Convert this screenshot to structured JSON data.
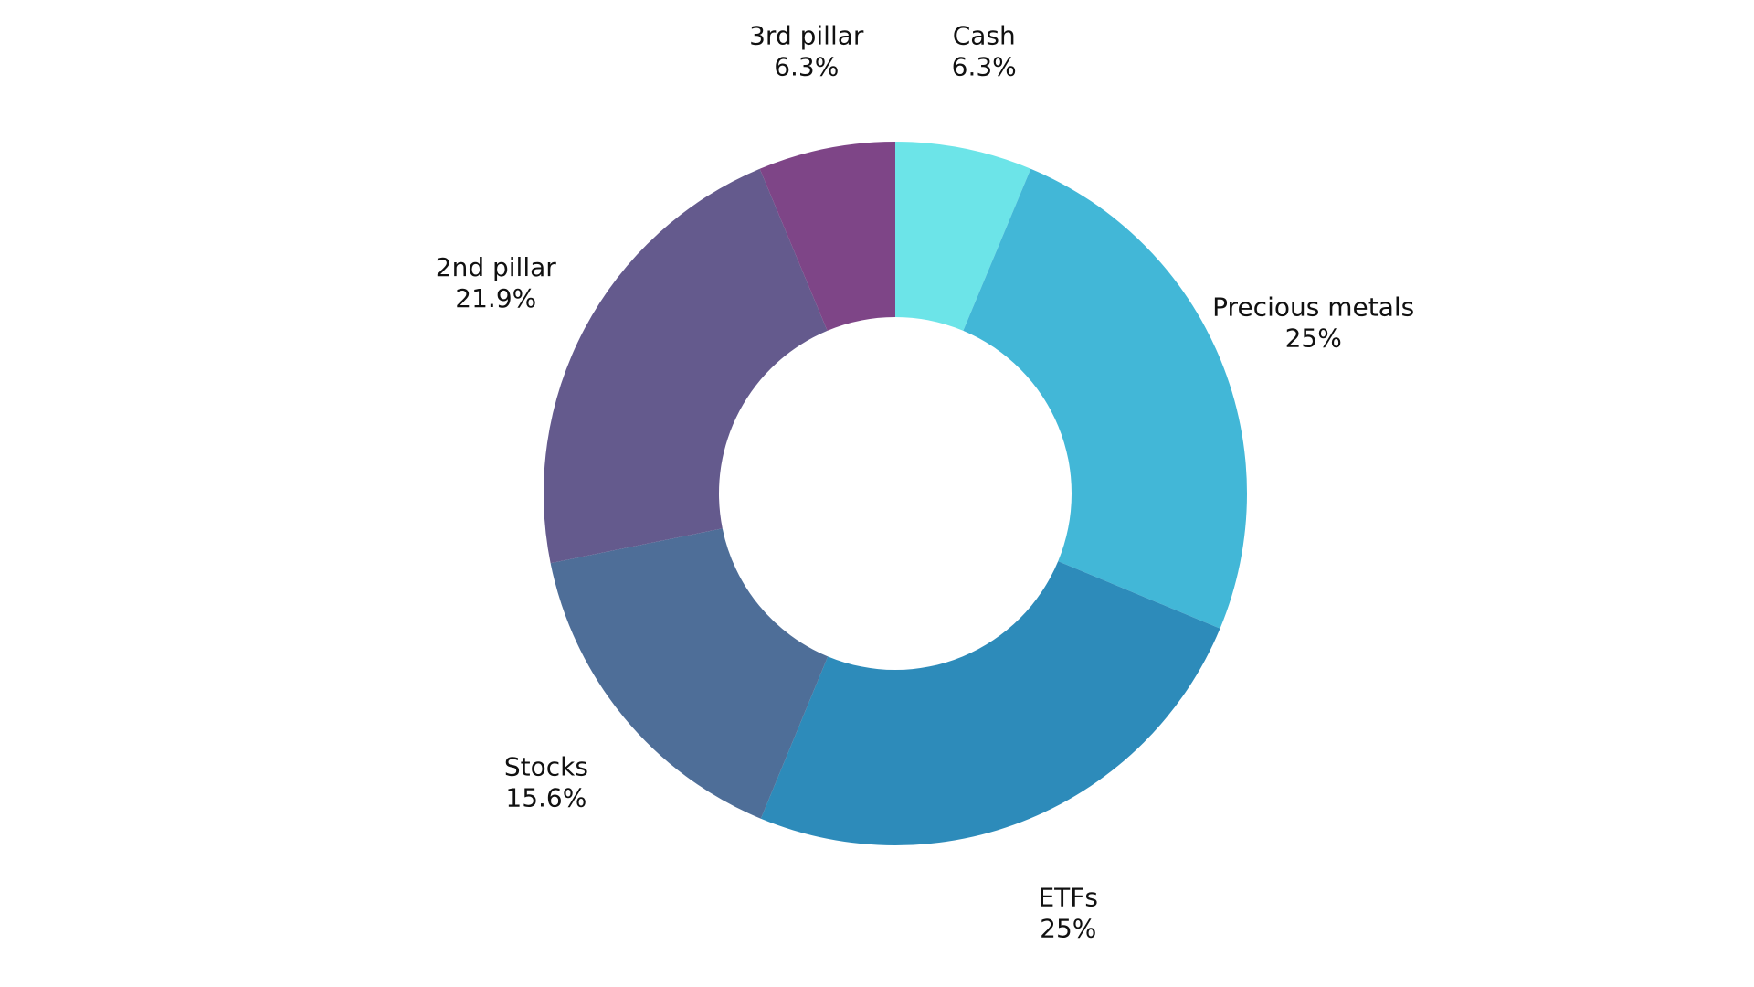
{
  "chart_data": {
    "type": "pie",
    "donut": true,
    "start": "12 o'clock",
    "direction": "clockwise",
    "slices": [
      {
        "label": "Cash",
        "value": 6.3,
        "value_label": "6.3%",
        "color": "#6ce4e8"
      },
      {
        "label": "Precious metals",
        "value": 25,
        "value_label": "25%",
        "color": "#42b7d7"
      },
      {
        "label": "ETFs",
        "value": 25,
        "value_label": "25%",
        "color": "#2d8bba"
      },
      {
        "label": "Stocks",
        "value": 15.6,
        "value_label": "15.6%",
        "color": "#4e6e98"
      },
      {
        "label": "2nd pillar",
        "value": 21.9,
        "value_label": "21.9%",
        "color": "#645a8d"
      },
      {
        "label": "3rd pillar",
        "value": 6.3,
        "value_label": "6.3%",
        "color": "#7e4587"
      }
    ],
    "legend": "none",
    "labels": "outside"
  }
}
